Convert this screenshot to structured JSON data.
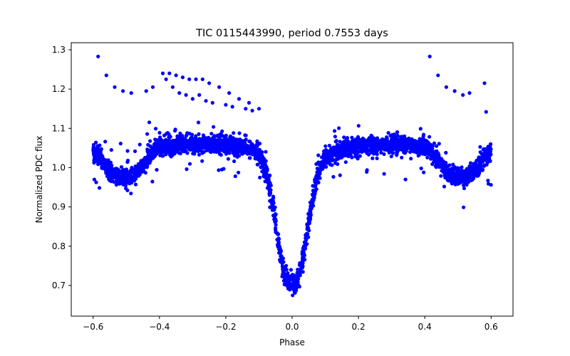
{
  "chart_data": {
    "type": "scatter",
    "title": "TIC 0115443990, period 0.7553 days",
    "xlabel": "Phase",
    "ylabel": "Normalized PDC flux",
    "xlim": [
      -0.666,
      0.666
    ],
    "ylim": [
      0.622,
      1.318
    ],
    "xticks": [
      -0.6,
      -0.4,
      -0.2,
      0.0,
      0.2,
      0.4,
      0.6
    ],
    "xtick_labels": [
      "−0.6",
      "−0.4",
      "−0.2",
      "0.0",
      "0.2",
      "0.4",
      "0.6"
    ],
    "yticks": [
      0.7,
      0.8,
      0.9,
      1.0,
      1.1,
      1.2,
      1.3
    ],
    "ytick_labels": [
      "0.7",
      "0.8",
      "0.9",
      "1.0",
      "1.1",
      "1.2",
      "1.3"
    ],
    "grid": false,
    "legend": "none",
    "marker_color": "#0000ff",
    "phase_range": [
      -0.6,
      0.6
    ],
    "light_curve_profile": [
      [
        -0.6,
        1.04
      ],
      [
        -0.58,
        1.03
      ],
      [
        -0.56,
        1.0
      ],
      [
        -0.54,
        0.985
      ],
      [
        -0.52,
        0.975
      ],
      [
        -0.5,
        0.975
      ],
      [
        -0.48,
        0.98
      ],
      [
        -0.46,
        0.995
      ],
      [
        -0.44,
        1.02
      ],
      [
        -0.42,
        1.04
      ],
      [
        -0.4,
        1.05
      ],
      [
        -0.35,
        1.058
      ],
      [
        -0.3,
        1.062
      ],
      [
        -0.25,
        1.06
      ],
      [
        -0.2,
        1.057
      ],
      [
        -0.15,
        1.05
      ],
      [
        -0.12,
        1.045
      ],
      [
        -0.1,
        1.035
      ],
      [
        -0.09,
        1.02
      ],
      [
        -0.08,
        0.99
      ],
      [
        -0.07,
        0.955
      ],
      [
        -0.06,
        0.91
      ],
      [
        -0.05,
        0.86
      ],
      [
        -0.04,
        0.805
      ],
      [
        -0.03,
        0.755
      ],
      [
        -0.02,
        0.72
      ],
      [
        -0.01,
        0.705
      ],
      [
        0.0,
        0.702
      ],
      [
        0.01,
        0.705
      ],
      [
        0.02,
        0.72
      ],
      [
        0.03,
        0.755
      ],
      [
        0.04,
        0.805
      ],
      [
        0.05,
        0.86
      ],
      [
        0.06,
        0.91
      ],
      [
        0.07,
        0.955
      ],
      [
        0.08,
        0.99
      ],
      [
        0.09,
        1.01
      ],
      [
        0.1,
        1.025
      ],
      [
        0.12,
        1.035
      ],
      [
        0.15,
        1.045
      ],
      [
        0.2,
        1.055
      ],
      [
        0.25,
        1.06
      ],
      [
        0.3,
        1.062
      ],
      [
        0.35,
        1.058
      ],
      [
        0.4,
        1.05
      ],
      [
        0.42,
        1.04
      ],
      [
        0.44,
        1.02
      ],
      [
        0.46,
        0.995
      ],
      [
        0.48,
        0.98
      ],
      [
        0.5,
        0.975
      ],
      [
        0.52,
        0.975
      ],
      [
        0.54,
        0.985
      ],
      [
        0.56,
        1.0
      ],
      [
        0.58,
        1.03
      ],
      [
        0.6,
        1.04
      ]
    ],
    "outlier_points": [
      [
        -0.585,
        1.283
      ],
      [
        -0.56,
        1.235
      ],
      [
        -0.535,
        1.205
      ],
      [
        -0.51,
        1.195
      ],
      [
        -0.485,
        1.19
      ],
      [
        -0.44,
        1.195
      ],
      [
        -0.42,
        1.205
      ],
      [
        -0.39,
        1.24
      ],
      [
        -0.37,
        1.24
      ],
      [
        -0.35,
        1.235
      ],
      [
        -0.33,
        1.23
      ],
      [
        -0.31,
        1.225
      ],
      [
        -0.29,
        1.225
      ],
      [
        -0.27,
        1.225
      ],
      [
        -0.25,
        1.215
      ],
      [
        -0.22,
        1.205
      ],
      [
        -0.19,
        1.19
      ],
      [
        -0.16,
        1.175
      ],
      [
        -0.13,
        1.165
      ],
      [
        -0.1,
        1.15
      ],
      [
        -0.38,
        1.225
      ],
      [
        -0.36,
        1.205
      ],
      [
        -0.34,
        1.19
      ],
      [
        -0.32,
        1.185
      ],
      [
        -0.3,
        1.175
      ],
      [
        -0.28,
        1.185
      ],
      [
        -0.26,
        1.17
      ],
      [
        -0.24,
        1.165
      ],
      [
        -0.2,
        1.16
      ],
      [
        -0.18,
        1.155
      ],
      [
        -0.14,
        1.15
      ],
      [
        -0.12,
        1.145
      ],
      [
        0.415,
        1.283
      ],
      [
        0.44,
        1.235
      ],
      [
        0.465,
        1.205
      ],
      [
        0.49,
        1.195
      ],
      [
        0.515,
        1.185
      ],
      [
        0.535,
        1.19
      ],
      [
        0.58,
        1.215
      ],
      [
        0.585,
        1.142
      ]
    ]
  }
}
